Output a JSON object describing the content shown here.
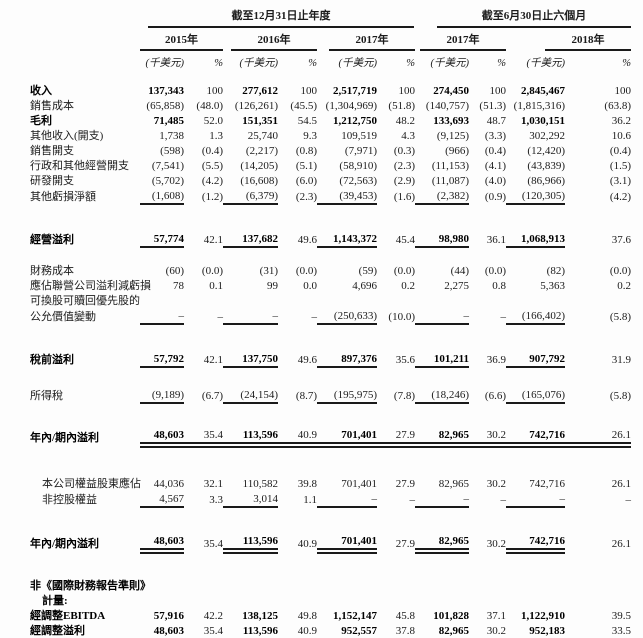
{
  "header": {
    "group_annual": "截至12月31日止年度",
    "group_interim": "截至6月30日止六個月",
    "years": [
      "2015年",
      "2016年",
      "2017年",
      "2017年",
      "2018年"
    ],
    "unit_label": "(千美元)",
    "pct_label": "%"
  },
  "table": {
    "rows": [
      {
        "label": "收入",
        "bold": true,
        "indent": 0,
        "gap": 0,
        "u": "",
        "cells": [
          "137,343",
          "100",
          "277,612",
          "100",
          "2,517,719",
          "100",
          "274,450",
          "100",
          "2,845,467",
          "100"
        ]
      },
      {
        "label": "銷售成本",
        "bold": false,
        "indent": 0,
        "gap": 0,
        "u": "",
        "cells": [
          "(65,858)",
          "(48.0)",
          "(126,261)",
          "(45.5)",
          "(1,304,969)",
          "(51.8)",
          "(140,757)",
          "(51.3)",
          "(1,815,316)",
          "(63.8)"
        ]
      },
      {
        "label": "毛利",
        "bold": true,
        "indent": 0,
        "gap": 0,
        "u": "",
        "cells": [
          "71,485",
          "52.0",
          "151,351",
          "54.5",
          "1,212,750",
          "48.2",
          "133,693",
          "48.7",
          "1,030,151",
          "36.2"
        ]
      },
      {
        "label": "其他收入(開支)",
        "bold": false,
        "indent": 0,
        "gap": 0,
        "u": "",
        "cells": [
          "1,738",
          "1.3",
          "25,740",
          "9.3",
          "109,519",
          "4.3",
          "(9,125)",
          "(3.3)",
          "302,292",
          "10.6"
        ]
      },
      {
        "label": "銷售開支",
        "bold": false,
        "indent": 0,
        "gap": 0,
        "u": "",
        "cells": [
          "(598)",
          "(0.4)",
          "(2,217)",
          "(0.8)",
          "(7,971)",
          "(0.3)",
          "(966)",
          "(0.4)",
          "(12,420)",
          "(0.4)"
        ]
      },
      {
        "label": "行政和其他經營開支",
        "bold": false,
        "indent": 0,
        "gap": 0,
        "u": "",
        "cells": [
          "(7,541)",
          "(5.5)",
          "(14,205)",
          "(5.1)",
          "(58,910)",
          "(2.3)",
          "(11,153)",
          "(4.1)",
          "(43,839)",
          "(1.5)"
        ]
      },
      {
        "label": "研發開支",
        "bold": false,
        "indent": 0,
        "gap": 0,
        "u": "",
        "cells": [
          "(5,702)",
          "(4.2)",
          "(16,608)",
          "(6.0)",
          "(72,563)",
          "(2.9)",
          "(11,087)",
          "(4.0)",
          "(86,966)",
          "(3.1)"
        ]
      },
      {
        "label": "其他虧損淨額",
        "bold": false,
        "indent": 0,
        "gap": 0,
        "u": "s",
        "cells": [
          "(1,608)",
          "(1.2)",
          "(6,379)",
          "(2.3)",
          "(39,453)",
          "(1.6)",
          "(2,382)",
          "(0.9)",
          "(120,305)",
          "(4.2)"
        ]
      },
      {
        "label": "經營溢利",
        "bold": true,
        "indent": 0,
        "gap": 26,
        "u": "s",
        "cells": [
          "57,774",
          "42.1",
          "137,682",
          "49.6",
          "1,143,372",
          "45.4",
          "98,980",
          "36.1",
          "1,068,913",
          "37.6"
        ]
      },
      {
        "label": "財務成本",
        "bold": false,
        "indent": 0,
        "gap": 15,
        "u": "",
        "cells": [
          "(60)",
          "(0.0)",
          "(31)",
          "(0.0)",
          "(59)",
          "(0.0)",
          "(44)",
          "(0.0)",
          "(82)",
          "(0.0)"
        ]
      },
      {
        "label": "應佔聯營公司溢利減虧損",
        "bold": false,
        "indent": 0,
        "gap": 0,
        "u": "",
        "cells": [
          "78",
          "0.1",
          "99",
          "0.0",
          "4,696",
          "0.2",
          "2,275",
          "0.8",
          "5,363",
          "0.2"
        ]
      },
      {
        "label": "可換股可贖回優先股的",
        "bold": false,
        "indent": 0,
        "gap": 0,
        "u": "",
        "cells": null
      },
      {
        "label": "公允價值變動",
        "bold": false,
        "indent": 0,
        "gap": 0,
        "u": "s",
        "cells": [
          "–",
          "–",
          "–",
          "–",
          "(250,633)",
          "(10.0)",
          "–",
          "–",
          "(166,402)",
          "(5.8)"
        ]
      },
      {
        "label": "稅前溢利",
        "bold": true,
        "indent": 0,
        "gap": 26,
        "u": "s",
        "cells": [
          "57,792",
          "42.1",
          "137,750",
          "49.6",
          "897,376",
          "35.6",
          "101,211",
          "36.9",
          "907,792",
          "31.9"
        ]
      },
      {
        "label": "所得稅",
        "bold": false,
        "indent": 0,
        "gap": 19,
        "u": "s",
        "cells": [
          "(9,189)",
          "(6.7)",
          "(24,154)",
          "(8.7)",
          "(195,975)",
          "(7.8)",
          "(18,246)",
          "(6.6)",
          "(165,076)",
          "(5.8)"
        ]
      },
      {
        "label": "年內/期內溢利",
        "bold": true,
        "indent": 0,
        "gap": 23,
        "u": "dp",
        "cells": [
          "48,603",
          "35.4",
          "113,596",
          "40.9",
          "701,401",
          "27.9",
          "82,965",
          "30.2",
          "742,716",
          "26.1"
        ]
      },
      {
        "label": "本公司權益股東應佔",
        "bold": false,
        "indent": 1,
        "gap": 28,
        "u": "",
        "cells": [
          "44,036",
          "32.1",
          "110,582",
          "39.8",
          "701,401",
          "27.9",
          "82,965",
          "30.2",
          "742,716",
          "26.1"
        ]
      },
      {
        "label": "非控股權益",
        "bold": false,
        "indent": 1,
        "gap": 0,
        "u": "s",
        "cells": [
          "4,567",
          "3.3",
          "3,014",
          "1.1",
          "–",
          "–",
          "–",
          "–",
          "–",
          "–"
        ]
      },
      {
        "label": "年內/期內溢利",
        "bold": true,
        "indent": 0,
        "gap": 25,
        "u": "d",
        "cells": [
          "48,603",
          "35.4",
          "113,596",
          "40.9",
          "701,401",
          "27.9",
          "82,965",
          "30.2",
          "742,716",
          "26.1"
        ]
      },
      {
        "label": "非《國際財務報告準則》",
        "bold": true,
        "indent": 0,
        "gap": 24,
        "u": "",
        "cells": null
      },
      {
        "label": "計量:",
        "bold": true,
        "indent": 1,
        "gap": 0,
        "u": "",
        "cells": null
      },
      {
        "label": "經調整EBITDA",
        "bold": true,
        "indent": 0,
        "gap": 0,
        "u": "",
        "cells": [
          "57,916",
          "42.2",
          "138,125",
          "49.8",
          "1,152,147",
          "45.8",
          "101,828",
          "37.1",
          "1,122,910",
          "39.5"
        ]
      },
      {
        "label": "經調整溢利",
        "bold": true,
        "indent": 0,
        "gap": 0,
        "u": "",
        "cells": [
          "48,603",
          "35.4",
          "113,596",
          "40.9",
          "952,557",
          "37.8",
          "82,965",
          "30.2",
          "952,183",
          "33.5"
        ]
      }
    ]
  }
}
